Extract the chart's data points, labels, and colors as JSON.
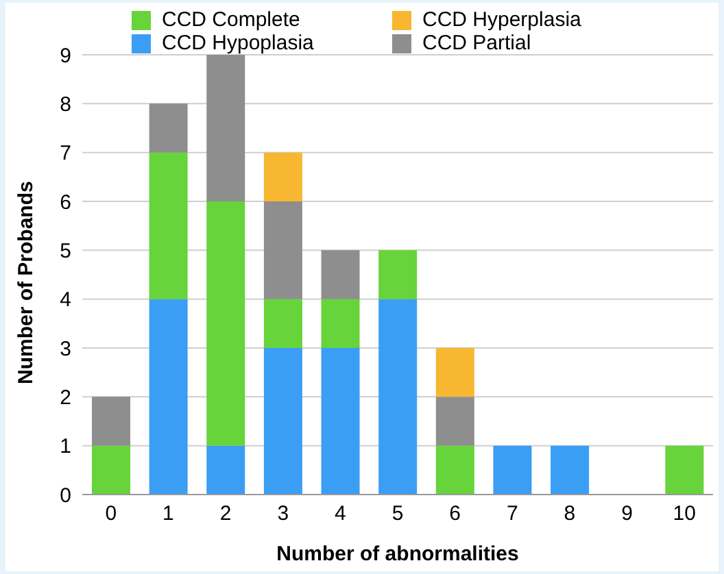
{
  "chart_data": {
    "type": "bar",
    "stacked": true,
    "xlabel": "Number of abnormalities",
    "ylabel": "Number of Probands",
    "categories": [
      "0",
      "1",
      "2",
      "3",
      "4",
      "5",
      "6",
      "7",
      "8",
      "9",
      "10"
    ],
    "series": [
      {
        "name": "CCD Hypoplasia",
        "color": "#3b9ef5",
        "values": [
          0,
          4,
          1,
          3,
          3,
          4,
          0,
          1,
          1,
          0,
          0
        ]
      },
      {
        "name": "CCD Complete",
        "color": "#66d43a",
        "values": [
          1,
          3,
          5,
          1,
          1,
          1,
          1,
          0,
          0,
          0,
          1
        ]
      },
      {
        "name": "CCD Partial",
        "color": "#8e8e8e",
        "values": [
          1,
          1,
          3,
          2,
          1,
          0,
          1,
          0,
          0,
          0,
          0
        ]
      },
      {
        "name": "CCD Hyperplasia",
        "color": "#f7b731",
        "values": [
          0,
          0,
          0,
          1,
          0,
          0,
          1,
          0,
          0,
          0,
          0
        ]
      }
    ],
    "ylim": [
      0,
      9
    ],
    "yticks": [
      0,
      1,
      2,
      3,
      4,
      5,
      6,
      7,
      8,
      9
    ],
    "grid": "y",
    "legend": "top"
  }
}
